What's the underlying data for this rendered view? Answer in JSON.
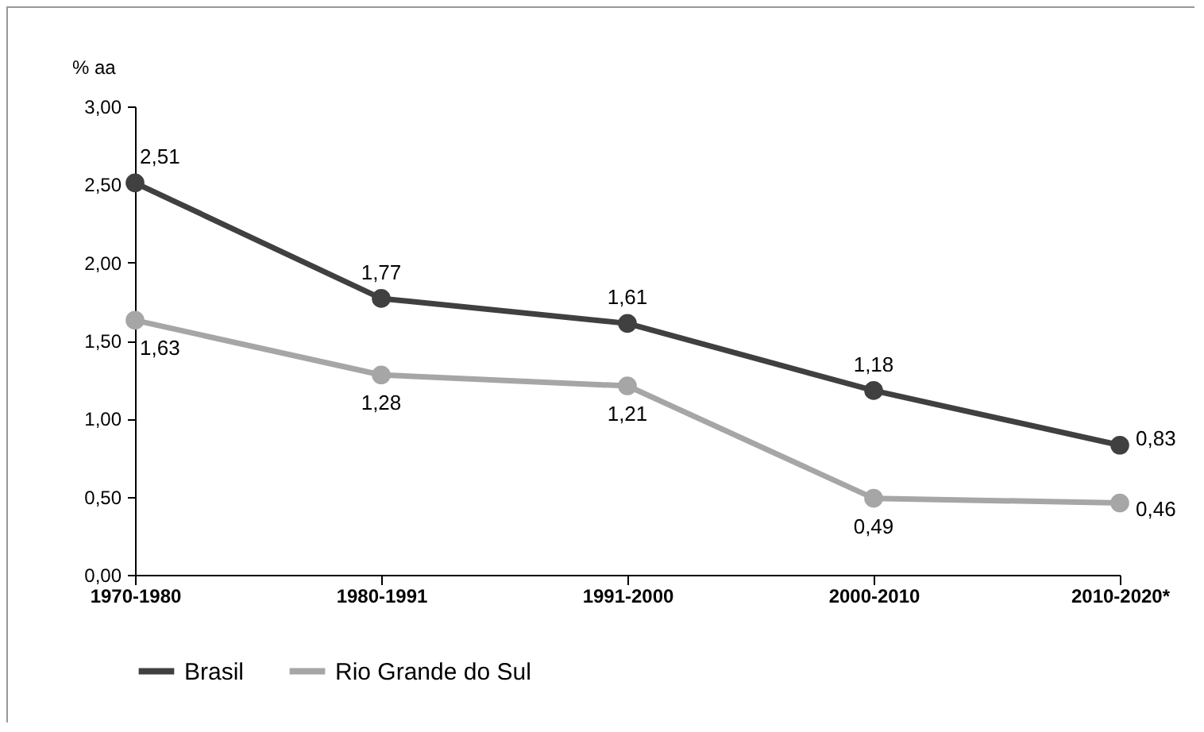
{
  "chart_data": {
    "type": "line",
    "ylabel": "% aa",
    "categories": [
      "1970-1980",
      "1980-1991",
      "1991-2000",
      "2000-2010",
      "2010-2020*"
    ],
    "series": [
      {
        "name": "Brasil",
        "color": "#404040",
        "values": [
          2.51,
          1.77,
          1.61,
          1.18,
          0.83
        ],
        "value_labels": [
          "2,51",
          "1,77",
          "1,61",
          "1,18",
          "0,83"
        ]
      },
      {
        "name": "Rio Grande do Sul",
        "color": "#a6a6a6",
        "values": [
          1.63,
          1.28,
          1.21,
          0.49,
          0.46
        ],
        "value_labels": [
          "1,63",
          "1,28",
          "1,21",
          "0,49",
          "0,46"
        ]
      }
    ],
    "ylim": [
      0,
      3
    ],
    "yticks": [
      {
        "value": 0,
        "label": "0,00"
      },
      {
        "value": 0.5,
        "label": "0,50"
      },
      {
        "value": 1,
        "label": "1,00"
      },
      {
        "value": 1.5,
        "label": "1,50"
      },
      {
        "value": 2,
        "label": "2,00"
      },
      {
        "value": 2.5,
        "label": "2,50"
      },
      {
        "value": 3,
        "label": "3,00"
      }
    ],
    "grid": false,
    "legend": "bottom",
    "marker": "circle",
    "line_style": "solid"
  }
}
